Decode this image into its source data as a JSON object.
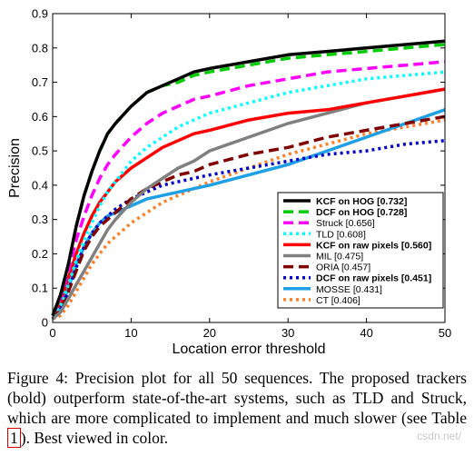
{
  "chart_data": {
    "type": "line",
    "title": "",
    "xlabel": "Location error threshold",
    "ylabel": "Precision",
    "xlim": [
      0,
      50
    ],
    "ylim": [
      0,
      0.9
    ],
    "x_ticks": [
      "0",
      "10",
      "20",
      "30",
      "40",
      "50"
    ],
    "y_ticks": [
      "0",
      "0.1",
      "0.2",
      "0.3",
      "0.4",
      "0.5",
      "0.6",
      "0.7",
      "0.8",
      "0.9"
    ],
    "legend_position": "bottom-right",
    "grid": false,
    "x": [
      0,
      1,
      2,
      3,
      4,
      5,
      6,
      7,
      8,
      10,
      12,
      14,
      16,
      18,
      20,
      25,
      30,
      35,
      40,
      45,
      50
    ],
    "series": [
      {
        "name": "KCF on HOG [0.732]",
        "bold": true,
        "color": "#000000",
        "dash": "solid",
        "values": [
          0.02,
          0.08,
          0.17,
          0.28,
          0.37,
          0.44,
          0.5,
          0.55,
          0.58,
          0.63,
          0.67,
          0.69,
          0.71,
          0.73,
          0.74,
          0.76,
          0.78,
          0.79,
          0.8,
          0.81,
          0.82
        ]
      },
      {
        "name": "DCF on HOG [0.728]",
        "bold": true,
        "color": "#00cc00",
        "dash": "dashed",
        "values": [
          0.02,
          0.08,
          0.17,
          0.28,
          0.37,
          0.44,
          0.5,
          0.55,
          0.58,
          0.63,
          0.67,
          0.69,
          0.7,
          0.72,
          0.73,
          0.75,
          0.77,
          0.78,
          0.79,
          0.8,
          0.81
        ]
      },
      {
        "name": "Struck [0.656]",
        "bold": false,
        "color": "#ff00ff",
        "dash": "dashed",
        "values": [
          0.02,
          0.07,
          0.15,
          0.24,
          0.31,
          0.37,
          0.42,
          0.46,
          0.49,
          0.54,
          0.58,
          0.61,
          0.63,
          0.65,
          0.66,
          0.69,
          0.71,
          0.73,
          0.74,
          0.75,
          0.76
        ]
      },
      {
        "name": "TLD [0.608]",
        "bold": false,
        "color": "#00ffff",
        "dash": "dotted",
        "values": [
          0.02,
          0.05,
          0.11,
          0.18,
          0.24,
          0.29,
          0.34,
          0.38,
          0.41,
          0.47,
          0.51,
          0.54,
          0.57,
          0.59,
          0.61,
          0.64,
          0.67,
          0.69,
          0.71,
          0.72,
          0.73
        ]
      },
      {
        "name": "KCF on raw pixels [0.560]",
        "bold": true,
        "color": "#ff0000",
        "dash": "solid",
        "values": [
          0.02,
          0.06,
          0.13,
          0.2,
          0.26,
          0.31,
          0.35,
          0.38,
          0.41,
          0.45,
          0.48,
          0.51,
          0.53,
          0.55,
          0.56,
          0.59,
          0.61,
          0.62,
          0.64,
          0.66,
          0.68
        ]
      },
      {
        "name": "MIL [0.475]",
        "bold": false,
        "color": "#808080",
        "dash": "solid",
        "values": [
          0.01,
          0.03,
          0.07,
          0.11,
          0.15,
          0.19,
          0.23,
          0.27,
          0.3,
          0.35,
          0.39,
          0.42,
          0.45,
          0.47,
          0.5,
          0.54,
          0.58,
          0.61,
          0.64,
          0.66,
          0.68
        ]
      },
      {
        "name": "ORIA [0.457]",
        "bold": false,
        "color": "#800000",
        "dash": "dashed",
        "values": [
          0.01,
          0.04,
          0.09,
          0.15,
          0.21,
          0.25,
          0.28,
          0.3,
          0.32,
          0.36,
          0.39,
          0.41,
          0.43,
          0.44,
          0.46,
          0.49,
          0.51,
          0.54,
          0.56,
          0.58,
          0.6
        ]
      },
      {
        "name": "DCF on raw pixels [0.451]",
        "bold": true,
        "color": "#0000cc",
        "dash": "dotted",
        "values": [
          0.01,
          0.04,
          0.09,
          0.16,
          0.22,
          0.26,
          0.29,
          0.31,
          0.33,
          0.36,
          0.38,
          0.4,
          0.41,
          0.42,
          0.43,
          0.45,
          0.47,
          0.49,
          0.5,
          0.52,
          0.53
        ]
      },
      {
        "name": "MOSSE [0.431]",
        "bold": false,
        "color": "#1ea0e6",
        "dash": "solid",
        "values": [
          0.01,
          0.04,
          0.1,
          0.17,
          0.22,
          0.26,
          0.29,
          0.31,
          0.32,
          0.34,
          0.36,
          0.37,
          0.38,
          0.39,
          0.4,
          0.43,
          0.46,
          0.5,
          0.54,
          0.58,
          0.62
        ]
      },
      {
        "name": "CT [0.406]",
        "bold": false,
        "color": "#ff7f27",
        "dash": "dotted",
        "values": [
          0.01,
          0.02,
          0.05,
          0.09,
          0.13,
          0.17,
          0.2,
          0.23,
          0.25,
          0.29,
          0.32,
          0.35,
          0.37,
          0.39,
          0.41,
          0.45,
          0.49,
          0.52,
          0.55,
          0.57,
          0.59
        ]
      }
    ]
  },
  "caption": {
    "before_ref": "Figure 4: Precision plot for all 50 sequences. The proposed trackers (bold) outperform state-of-the-art systems, such as TLD and Struck, which are more complicated to implement and much slower (see Table ",
    "ref": "1",
    "after_ref": "). Best viewed in color."
  },
  "watermark": "csdn.net/"
}
